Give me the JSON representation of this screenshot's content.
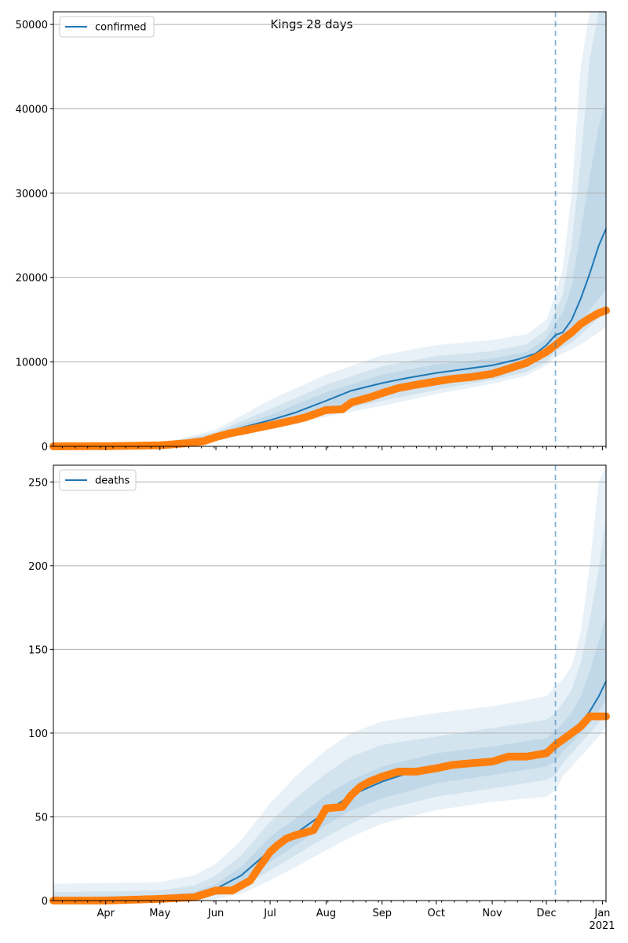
{
  "figure_title": "Kings 28 days",
  "colors": {
    "model": "#1f77b4",
    "observed": "#ff7f0e",
    "grid": "#b0b0b0",
    "band": "#1f77b4"
  },
  "chart_data": [
    {
      "type": "line",
      "panel": "top",
      "legend": "confirmed",
      "legend_position": "top-left",
      "grid": "horizontal",
      "xlim": [
        "2020-03-03",
        "2021-01-03"
      ],
      "ylim": [
        0,
        51500
      ],
      "yticks": [
        0,
        10000,
        20000,
        30000,
        40000,
        50000
      ],
      "ytick_labels": [
        "0",
        "10000",
        "20000",
        "30000",
        "40000",
        "50000"
      ],
      "forecast_start": "2020-12-06",
      "median": {
        "x": [
          "2020-03-03",
          "2020-04-01",
          "2020-05-01",
          "2020-05-20",
          "2020-06-01",
          "2020-06-15",
          "2020-07-01",
          "2020-07-15",
          "2020-08-01",
          "2020-08-15",
          "2020-09-01",
          "2020-09-15",
          "2020-10-01",
          "2020-10-15",
          "2020-11-01",
          "2020-11-15",
          "2020-11-25",
          "2020-12-01",
          "2020-12-06",
          "2020-12-10",
          "2020-12-15",
          "2020-12-20",
          "2020-12-25",
          "2020-12-30",
          "2021-01-03"
        ],
        "y": [
          0,
          30,
          150,
          500,
          1300,
          2200,
          3100,
          4000,
          5400,
          6600,
          7500,
          8100,
          8700,
          9100,
          9600,
          10300,
          11000,
          12000,
          13200,
          13500,
          15000,
          17500,
          20500,
          23800,
          25800
        ]
      },
      "bands": [
        {
          "level": "outer",
          "x": [
            "2020-03-03",
            "2020-05-01",
            "2020-06-01",
            "2020-06-15",
            "2020-07-01",
            "2020-08-01",
            "2020-09-01",
            "2020-10-01",
            "2020-11-01",
            "2020-11-20",
            "2020-12-01",
            "2020-12-06",
            "2020-12-10",
            "2020-12-15",
            "2020-12-20",
            "2020-12-25",
            "2020-12-30",
            "2021-01-03"
          ],
          "low": [
            0,
            60,
            600,
            1300,
            2000,
            3500,
            4800,
            6200,
            7400,
            8400,
            9600,
            10600,
            11000,
            11500,
            12100,
            12800,
            13500,
            14200
          ],
          "high": [
            0,
            250,
            2000,
            3600,
            5500,
            8500,
            10800,
            12000,
            12600,
            13300,
            15000,
            18000,
            21000,
            30000,
            45000,
            51500,
            51500,
            51500
          ]
        },
        {
          "level": "middle",
          "x": [
            "2020-03-03",
            "2020-05-01",
            "2020-06-01",
            "2020-06-15",
            "2020-07-01",
            "2020-08-01",
            "2020-09-01",
            "2020-10-01",
            "2020-11-01",
            "2020-11-20",
            "2020-12-01",
            "2020-12-06",
            "2020-12-10",
            "2020-12-15",
            "2020-12-20",
            "2020-12-25",
            "2020-12-30",
            "2021-01-03"
          ],
          "low": [
            0,
            90,
            800,
            1600,
            2300,
            3900,
            5400,
            6700,
            7900,
            8800,
            10000,
            11200,
            11700,
            12300,
            13200,
            14200,
            15200,
            16000
          ],
          "high": [
            0,
            200,
            1700,
            3000,
            4400,
            7300,
            9500,
            10700,
            11300,
            12100,
            13800,
            16000,
            18000,
            24000,
            34000,
            46000,
            51500,
            51500
          ]
        },
        {
          "level": "inner",
          "x": [
            "2020-03-03",
            "2020-05-01",
            "2020-06-01",
            "2020-06-15",
            "2020-07-01",
            "2020-08-01",
            "2020-09-01",
            "2020-10-01",
            "2020-11-01",
            "2020-11-20",
            "2020-12-01",
            "2020-12-06",
            "2020-12-10",
            "2020-12-15",
            "2020-12-20",
            "2020-12-25",
            "2020-12-30",
            "2021-01-03"
          ],
          "low": [
            0,
            110,
            1000,
            1800,
            2600,
            4400,
            6100,
            7400,
            8500,
            9400,
            10800,
            12000,
            12600,
            13500,
            14800,
            16200,
            17500,
            18500
          ],
          "high": [
            0,
            180,
            1500,
            2600,
            3700,
            6400,
            8500,
            9700,
            10400,
            11200,
            12800,
            14600,
            15800,
            19000,
            25500,
            32000,
            38000,
            41000
          ]
        }
      ],
      "observed": {
        "x": [
          "2020-03-03",
          "2020-04-01",
          "2020-05-01",
          "2020-05-15",
          "2020-05-25",
          "2020-06-01",
          "2020-06-08",
          "2020-06-15",
          "2020-06-22",
          "2020-07-01",
          "2020-07-10",
          "2020-07-20",
          "2020-08-01",
          "2020-08-10",
          "2020-08-15",
          "2020-08-25",
          "2020-09-01",
          "2020-09-10",
          "2020-09-20",
          "2020-10-01",
          "2020-10-10",
          "2020-10-20",
          "2020-11-01",
          "2020-11-10",
          "2020-11-20",
          "2020-12-01",
          "2020-12-06",
          "2020-12-10",
          "2020-12-15",
          "2020-12-20",
          "2020-12-25",
          "2020-12-30",
          "2021-01-03"
        ],
        "y": [
          0,
          20,
          120,
          350,
          600,
          1100,
          1500,
          1800,
          2100,
          2500,
          2900,
          3400,
          4300,
          4400,
          5200,
          5800,
          6300,
          6900,
          7300,
          7700,
          8000,
          8200,
          8600,
          9200,
          9900,
          11200,
          12000,
          12700,
          13500,
          14500,
          15200,
          15800,
          16100
        ]
      }
    },
    {
      "type": "line",
      "panel": "bottom",
      "legend": "deaths",
      "legend_position": "top-left",
      "grid": "horizontal",
      "xlim": [
        "2020-03-03",
        "2021-01-03"
      ],
      "ylim": [
        0,
        260
      ],
      "yticks": [
        0,
        50,
        100,
        150,
        200,
        250
      ],
      "ytick_labels": [
        "0",
        "50",
        "100",
        "150",
        "200",
        "250"
      ],
      "xtick_labels": [
        "Apr",
        "May",
        "Jun",
        "Jul",
        "Aug",
        "Sep",
        "Oct",
        "Nov",
        "Dec",
        "Jan"
      ],
      "xtick_dates": [
        "2020-04-01",
        "2020-05-01",
        "2020-06-01",
        "2020-07-01",
        "2020-08-01",
        "2020-09-01",
        "2020-10-01",
        "2020-11-01",
        "2020-12-01",
        "2021-01-01"
      ],
      "year_label": "2021",
      "forecast_start": "2020-12-06",
      "median": {
        "x": [
          "2020-03-03",
          "2020-05-01",
          "2020-05-20",
          "2020-06-01",
          "2020-06-15",
          "2020-07-01",
          "2020-07-15",
          "2020-08-01",
          "2020-08-15",
          "2020-09-01",
          "2020-09-15",
          "2020-10-01",
          "2020-10-15",
          "2020-11-01",
          "2020-11-15",
          "2020-12-01",
          "2020-12-06",
          "2020-12-10",
          "2020-12-15",
          "2020-12-20",
          "2020-12-25",
          "2020-12-30",
          "2021-01-03"
        ],
        "y": [
          0,
          1,
          3,
          7,
          15,
          30,
          40,
          53,
          63,
          71,
          76,
          79,
          82,
          84,
          86,
          90,
          92,
          96,
          100,
          106,
          113,
          122,
          131
        ]
      },
      "bands": [
        {
          "level": "outer",
          "x": [
            "2020-03-03",
            "2020-05-01",
            "2020-05-20",
            "2020-06-01",
            "2020-06-15",
            "2020-07-01",
            "2020-07-15",
            "2020-08-01",
            "2020-08-15",
            "2020-09-01",
            "2020-10-01",
            "2020-11-01",
            "2020-12-01",
            "2020-12-06",
            "2020-12-10",
            "2020-12-15",
            "2020-12-20",
            "2020-12-25",
            "2020-12-30",
            "2021-01-03"
          ],
          "low": [
            0,
            0,
            0,
            1,
            4,
            12,
            20,
            30,
            38,
            46,
            54,
            59,
            62,
            66,
            74,
            80,
            86,
            92,
            98,
            104
          ],
          "high": [
            10,
            11,
            15,
            22,
            36,
            58,
            74,
            90,
            100,
            107,
            112,
            116,
            122,
            128,
            132,
            140,
            160,
            200,
            250,
            260
          ]
        },
        {
          "level": "middle",
          "x": [
            "2020-03-03",
            "2020-05-01",
            "2020-05-20",
            "2020-06-01",
            "2020-06-15",
            "2020-07-01",
            "2020-07-15",
            "2020-08-01",
            "2020-08-15",
            "2020-09-01",
            "2020-10-01",
            "2020-11-01",
            "2020-12-01",
            "2020-12-06",
            "2020-12-10",
            "2020-12-15",
            "2020-12-20",
            "2020-12-25",
            "2020-12-30",
            "2021-01-03"
          ],
          "low": [
            0,
            0,
            1,
            3,
            8,
            18,
            27,
            38,
            46,
            54,
            62,
            67,
            72,
            75,
            82,
            88,
            94,
            100,
            106,
            112
          ],
          "high": [
            5,
            6,
            9,
            15,
            27,
            47,
            61,
            76,
            86,
            93,
            98,
            103,
            108,
            112,
            118,
            126,
            142,
            168,
            198,
            230
          ]
        },
        {
          "level": "inner",
          "x": [
            "2020-03-03",
            "2020-05-01",
            "2020-05-20",
            "2020-06-01",
            "2020-06-15",
            "2020-07-01",
            "2020-07-15",
            "2020-08-01",
            "2020-08-15",
            "2020-09-01",
            "2020-10-01",
            "2020-11-01",
            "2020-12-01",
            "2020-12-06",
            "2020-12-10",
            "2020-12-15",
            "2020-12-20",
            "2020-12-25",
            "2020-12-30",
            "2021-01-03"
          ],
          "low": [
            0,
            0,
            2,
            5,
            11,
            23,
            33,
            45,
            54,
            61,
            70,
            75,
            80,
            83,
            89,
            94,
            100,
            106,
            113,
            120
          ],
          "high": [
            2,
            3,
            5,
            10,
            20,
            38,
            49,
            63,
            72,
            80,
            88,
            92,
            97,
            101,
            106,
            112,
            122,
            137,
            155,
            170
          ]
        }
      ],
      "observed": {
        "x": [
          "2020-03-03",
          "2020-04-01",
          "2020-05-01",
          "2020-05-20",
          "2020-06-01",
          "2020-06-10",
          "2020-06-20",
          "2020-06-25",
          "2020-07-01",
          "2020-07-05",
          "2020-07-10",
          "2020-07-15",
          "2020-07-25",
          "2020-08-01",
          "2020-08-10",
          "2020-08-15",
          "2020-08-20",
          "2020-08-25",
          "2020-09-01",
          "2020-09-10",
          "2020-09-20",
          "2020-10-01",
          "2020-10-10",
          "2020-10-20",
          "2020-11-01",
          "2020-11-10",
          "2020-11-20",
          "2020-12-01",
          "2020-12-06",
          "2020-12-10",
          "2020-12-15",
          "2020-12-20",
          "2020-12-25",
          "2020-12-30",
          "2021-01-03"
        ],
        "y": [
          0,
          0,
          1,
          2,
          6,
          6,
          12,
          20,
          29,
          33,
          37,
          39,
          42,
          55,
          56,
          63,
          68,
          71,
          74,
          77,
          77,
          79,
          81,
          82,
          83,
          86,
          86,
          88,
          93,
          96,
          100,
          104,
          110,
          110,
          110
        ]
      }
    }
  ]
}
